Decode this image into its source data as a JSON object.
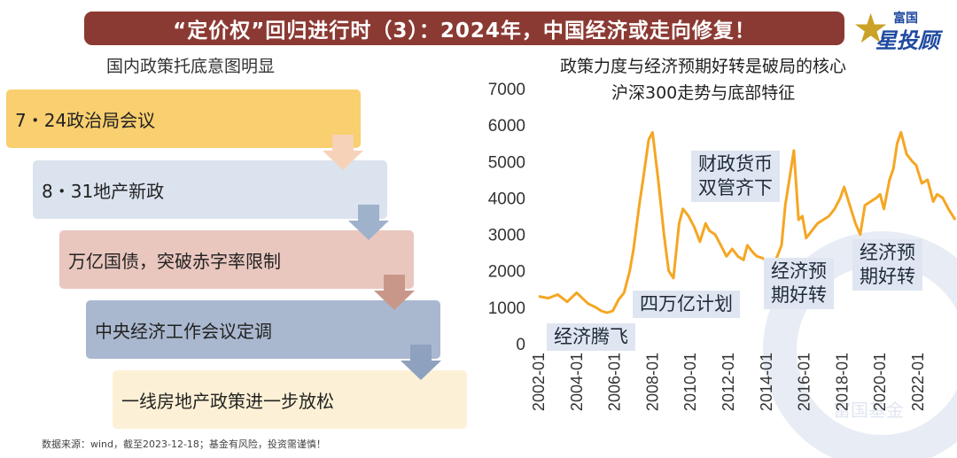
{
  "header": {
    "title": "“定价权”回归进行时（3）：2024年，中国经济或走向修复！"
  },
  "logo": {
    "top_text": "富国",
    "bottom_text": "星投顾",
    "icon": "star-icon",
    "watermark_text": "富国基金"
  },
  "left_panel": {
    "title": "国内政策托底意图明显",
    "steps": [
      {
        "label": "7・24政治局会议",
        "color": "#f9cf6f",
        "arrow_color": "#f6d2b8"
      },
      {
        "label": "8・31地产新政",
        "color": "#dbe3ee",
        "arrow_color": "#9fb2cc"
      },
      {
        "label": "万亿国债，突破赤字率限制",
        "color": "#e9c7bf",
        "arrow_color": "#c99789"
      },
      {
        "label": "中央经济工作会议定调",
        "color": "#aab8cf",
        "arrow_color": "#8ea1bf"
      },
      {
        "label": "一线房地产政策进一步放松",
        "color": "#fcf1d6"
      }
    ]
  },
  "footer": {
    "source": "数据来源：wind，截至2023-12-18；基金有风险，投资需谨慎！"
  },
  "right_panel": {
    "title": "政策力度与经济预期好转是破局的核心"
  },
  "chart_data": {
    "type": "line",
    "title": "沪深300走势与底部特征",
    "series": [
      {
        "name": "沪深300",
        "color": "#f5a623",
        "x": [
          2002.0,
          2002.5,
          2003.0,
          2003.5,
          2004.0,
          2004.3,
          2004.6,
          2005.0,
          2005.3,
          2005.6,
          2005.9,
          2006.2,
          2006.5,
          2006.8,
          2007.0,
          2007.3,
          2007.5,
          2007.8,
          2008.0,
          2008.3,
          2008.6,
          2008.85,
          2009.1,
          2009.4,
          2009.6,
          2009.9,
          2010.2,
          2010.5,
          2010.8,
          2011.0,
          2011.3,
          2011.6,
          2011.9,
          2012.2,
          2012.5,
          2012.8,
          2013.0,
          2013.3,
          2013.5,
          2013.8,
          2014.2,
          2014.5,
          2014.8,
          2015.0,
          2015.3,
          2015.45,
          2015.7,
          2015.9,
          2016.1,
          2016.4,
          2016.7,
          2017.0,
          2017.3,
          2017.6,
          2017.9,
          2018.1,
          2018.4,
          2018.7,
          2018.95,
          2019.2,
          2019.5,
          2019.8,
          2020.0,
          2020.2,
          2020.5,
          2020.7,
          2020.9,
          2021.1,
          2021.4,
          2021.7,
          2021.9,
          2022.2,
          2022.5,
          2022.8,
          2023.0,
          2023.3,
          2023.6,
          2023.96
        ],
        "y": [
          1300,
          1250,
          1350,
          1150,
          1400,
          1250,
          1100,
          1000,
          900,
          850,
          900,
          1200,
          1400,
          2000,
          2600,
          3800,
          4500,
          5600,
          5800,
          4500,
          3000,
          2000,
          1800,
          3300,
          3700,
          3500,
          3200,
          2800,
          3300,
          3100,
          3000,
          2700,
          2400,
          2600,
          2400,
          2300,
          2700,
          2500,
          2400,
          2350,
          2200,
          2300,
          2700,
          3800,
          4800,
          5300,
          3400,
          3500,
          2900,
          3100,
          3300,
          3400,
          3500,
          3700,
          4000,
          4300,
          3800,
          3300,
          3000,
          3800,
          3900,
          4000,
          4100,
          3700,
          4500,
          4800,
          5500,
          5800,
          5200,
          5000,
          4900,
          4400,
          4500,
          3900,
          4100,
          4000,
          3700,
          3400
        ]
      }
    ],
    "x_ticks": [
      "2002-01",
      "2004-01",
      "2006-01",
      "2008-01",
      "2010-01",
      "2012-01",
      "2014-01",
      "2016-01",
      "2018-01",
      "2020-01",
      "2022-01"
    ],
    "x_tick_values": [
      2002,
      2004,
      2006,
      2008,
      2010,
      2012,
      2014,
      2016,
      2018,
      2020,
      2022
    ],
    "y_ticks": [
      0,
      1000,
      2000,
      3000,
      4000,
      5000,
      6000,
      7000
    ],
    "ylim": [
      0,
      7000
    ],
    "xlim": [
      2002,
      2023.96
    ],
    "annotations": [
      {
        "text": "经济腾飞"
      },
      {
        "text": "四万亿计划"
      },
      {
        "text": "财政货币\n双管齐下"
      },
      {
        "text": "经济预\n期好转"
      },
      {
        "text": "经济预\n期好转"
      }
    ]
  }
}
